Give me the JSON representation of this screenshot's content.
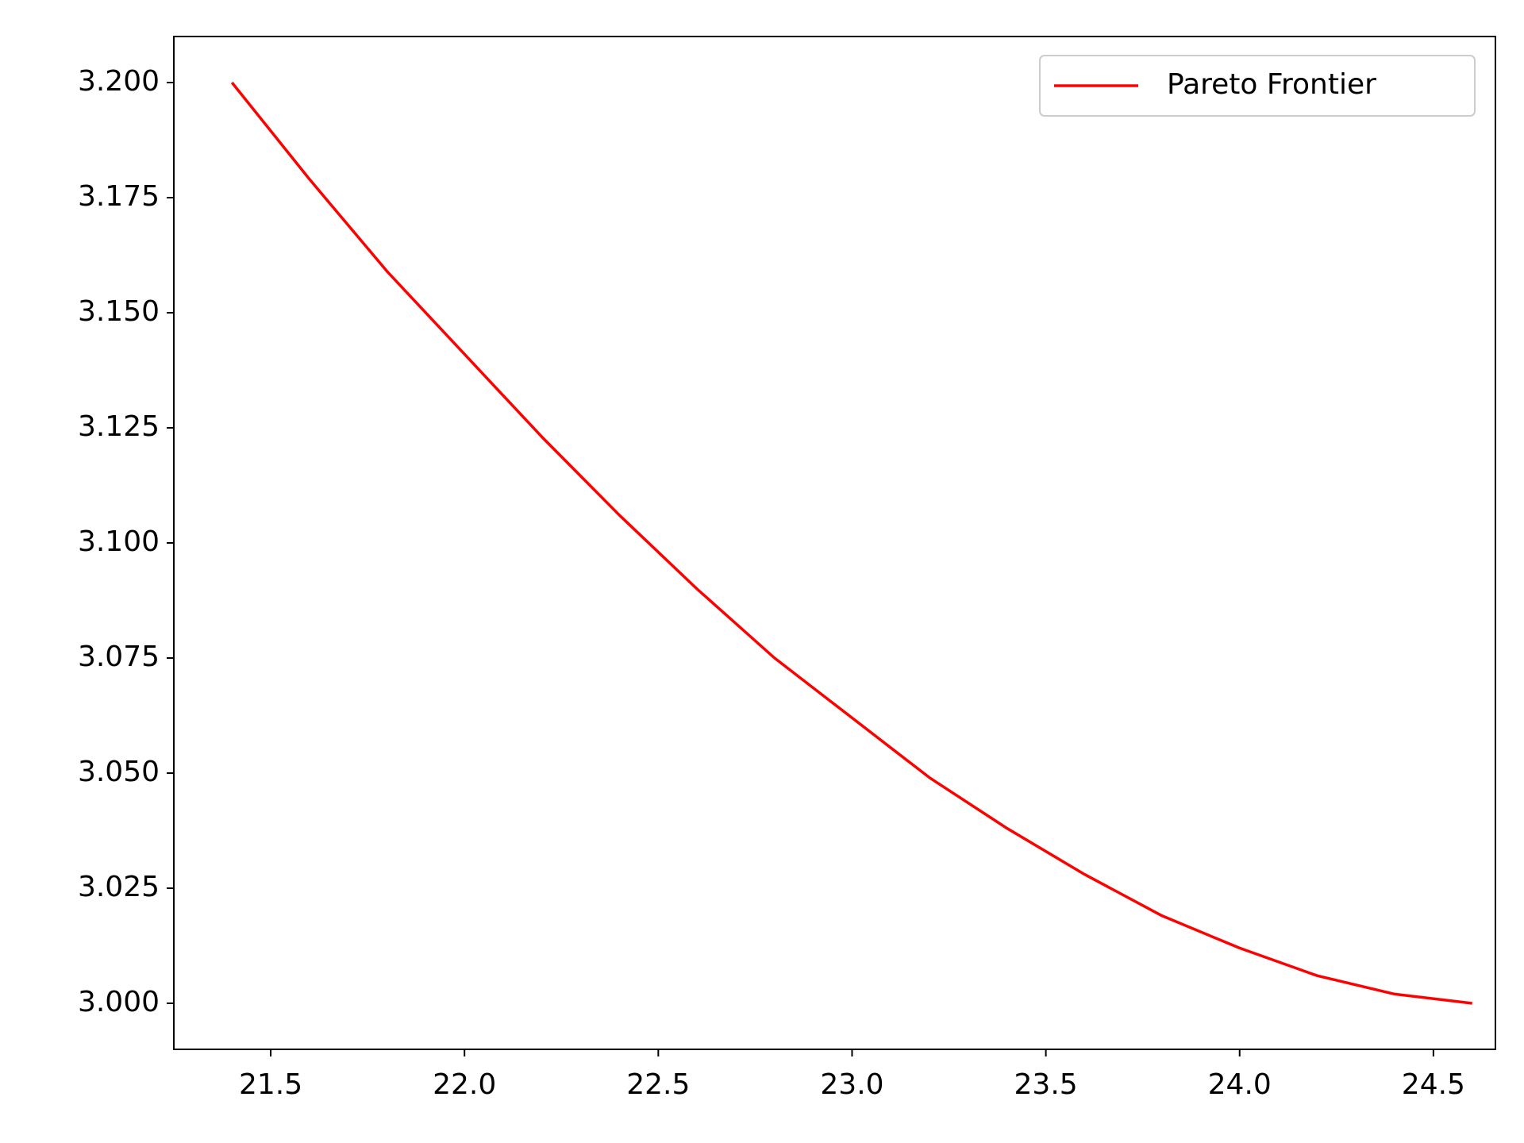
{
  "chart_data": {
    "type": "line",
    "x": [
      21.4,
      21.6,
      21.8,
      22.0,
      22.2,
      22.4,
      22.6,
      22.8,
      23.0,
      23.2,
      23.4,
      23.6,
      23.8,
      24.0,
      24.2,
      24.4,
      24.6
    ],
    "series": [
      {
        "name": "Pareto Frontier",
        "color": "#ff0000",
        "values": [
          3.2,
          3.179,
          3.159,
          3.141,
          3.123,
          3.106,
          3.09,
          3.075,
          3.062,
          3.049,
          3.038,
          3.028,
          3.019,
          3.012,
          3.006,
          3.002,
          3.0
        ]
      }
    ],
    "xlim": [
      21.25,
      24.66
    ],
    "ylim": [
      2.99,
      3.21
    ],
    "xticks": [
      21.5,
      {
        "value": 22,
        "label": "22.0"
      },
      22.5,
      {
        "value": 23,
        "label": "23.0"
      },
      23.5,
      {
        "value": 24,
        "label": "24.0"
      },
      24.5
    ],
    "yticks": [
      {
        "value": 3,
        "label": "3.000"
      },
      {
        "value": 3.025,
        "label": "3.025"
      },
      {
        "value": 3.05,
        "label": "3.050"
      },
      {
        "value": 3.075,
        "label": "3.075"
      },
      {
        "value": 3.1,
        "label": "3.100"
      },
      {
        "value": 3.125,
        "label": "3.125"
      },
      {
        "value": 3.15,
        "label": "3.150"
      },
      {
        "value": 3.175,
        "label": "3.175"
      },
      {
        "value": 3.2,
        "label": "3.200"
      }
    ],
    "legend": "upper right",
    "grid": false
  }
}
